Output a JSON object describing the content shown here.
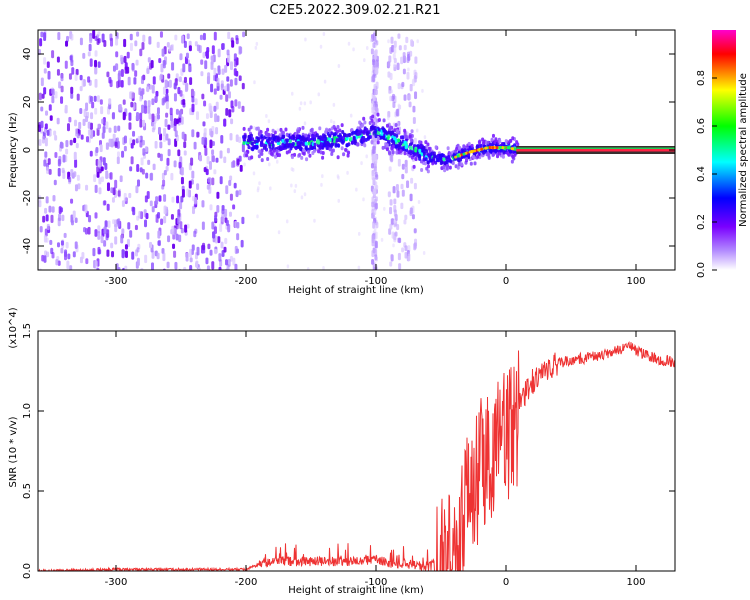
{
  "figure_title": "C2E5.2022.309.02.21.R21",
  "chart_data": [
    {
      "type": "heatmap",
      "xlabel": "Height of straight line (km)",
      "ylabel": "Frequency (Hz)",
      "xlim": [
        -360,
        130
      ],
      "ylim": [
        -50,
        50
      ],
      "xticks": [
        -300,
        -200,
        -100,
        0,
        100
      ],
      "yticks": [
        40,
        20,
        0,
        -20,
        -40
      ],
      "colorbar": {
        "label": "Normalized spectral amplitude",
        "range": [
          0,
          1
        ],
        "ticks": [
          "0.0",
          "0.2",
          "0.4",
          "0.6",
          "0.8"
        ],
        "colormap": [
          "#ffffff",
          "#7a00ff",
          "#0000ff",
          "#00ffff",
          "#00ff00",
          "#ffff00",
          "#ff0000",
          "#ff00cc"
        ]
      },
      "features": {
        "noise_region_x": [
          -360,
          -203
        ],
        "signal_band_x": [
          -203,
          8
        ],
        "signal_band_center_freq": [
          [
            -200,
            3
          ],
          [
            -150,
            3
          ],
          [
            -120,
            5
          ],
          [
            -100,
            8
          ],
          [
            -90,
            5
          ],
          [
            -70,
            0
          ],
          [
            -60,
            -3
          ],
          [
            -45,
            -4
          ],
          [
            -30,
            -1
          ],
          [
            -15,
            1
          ],
          [
            0,
            1
          ],
          [
            8,
            0
          ]
        ],
        "interference_columns_x": [
          [
            -104,
            -100
          ],
          [
            -92,
            -70
          ]
        ],
        "carrier_line_x": [
          8,
          130
        ],
        "carrier_line_freq": 0
      }
    },
    {
      "type": "line",
      "xlabel": "Height of straight line (km)",
      "ylabel": "SNR (10 * v/v)",
      "scale_label": "(x10^4)",
      "xlim": [
        -360,
        130
      ],
      "ylim": [
        0,
        1.5
      ],
      "xticks": [
        -300,
        -200,
        -100,
        0,
        100
      ],
      "yticks": [
        "0.0",
        "0.5",
        "1.0",
        "1.5"
      ],
      "series": [
        {
          "color": "#ee3333",
          "x": [
            -360,
            -300,
            -250,
            -200,
            -190,
            -180,
            -150,
            -120,
            -100,
            -90,
            -70,
            -60,
            -50,
            -40,
            -30,
            -20,
            -10,
            0,
            10,
            20,
            30,
            40,
            60,
            80,
            95,
            110,
            130
          ],
          "y": [
            0.0,
            0.01,
            0.01,
            0.01,
            0.04,
            0.06,
            0.06,
            0.06,
            0.07,
            0.05,
            0.04,
            0.02,
            0.08,
            0.25,
            0.55,
            0.72,
            0.85,
            0.92,
            1.05,
            1.18,
            1.26,
            1.3,
            1.33,
            1.36,
            1.4,
            1.34,
            1.3
          ]
        }
      ]
    }
  ]
}
